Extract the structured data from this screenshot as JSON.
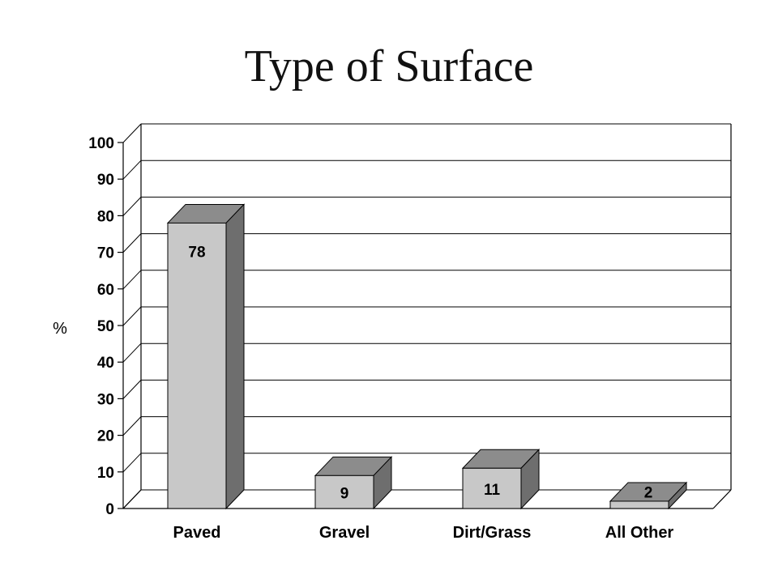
{
  "chart_data": {
    "type": "bar",
    "title": "Type of Surface",
    "ylabel": "%",
    "xlabel": "",
    "categories": [
      "Paved",
      "Gravel",
      "Dirt/Grass",
      "All Other"
    ],
    "values": [
      78,
      9,
      11,
      2
    ],
    "data_labels": [
      "78",
      "9",
      "11",
      "2"
    ],
    "ylim": [
      0,
      100
    ],
    "yticks": [
      "0",
      "10",
      "20",
      "30",
      "40",
      "50",
      "60",
      "70",
      "80",
      "90",
      "100"
    ],
    "grid": true,
    "style": "3d-column",
    "colors": {
      "bar_front": "#c8c8c8",
      "bar_top": "#8c8c8c",
      "bar_side": "#6e6e6e",
      "background": "#ffffff",
      "grid": "#000000"
    }
  }
}
